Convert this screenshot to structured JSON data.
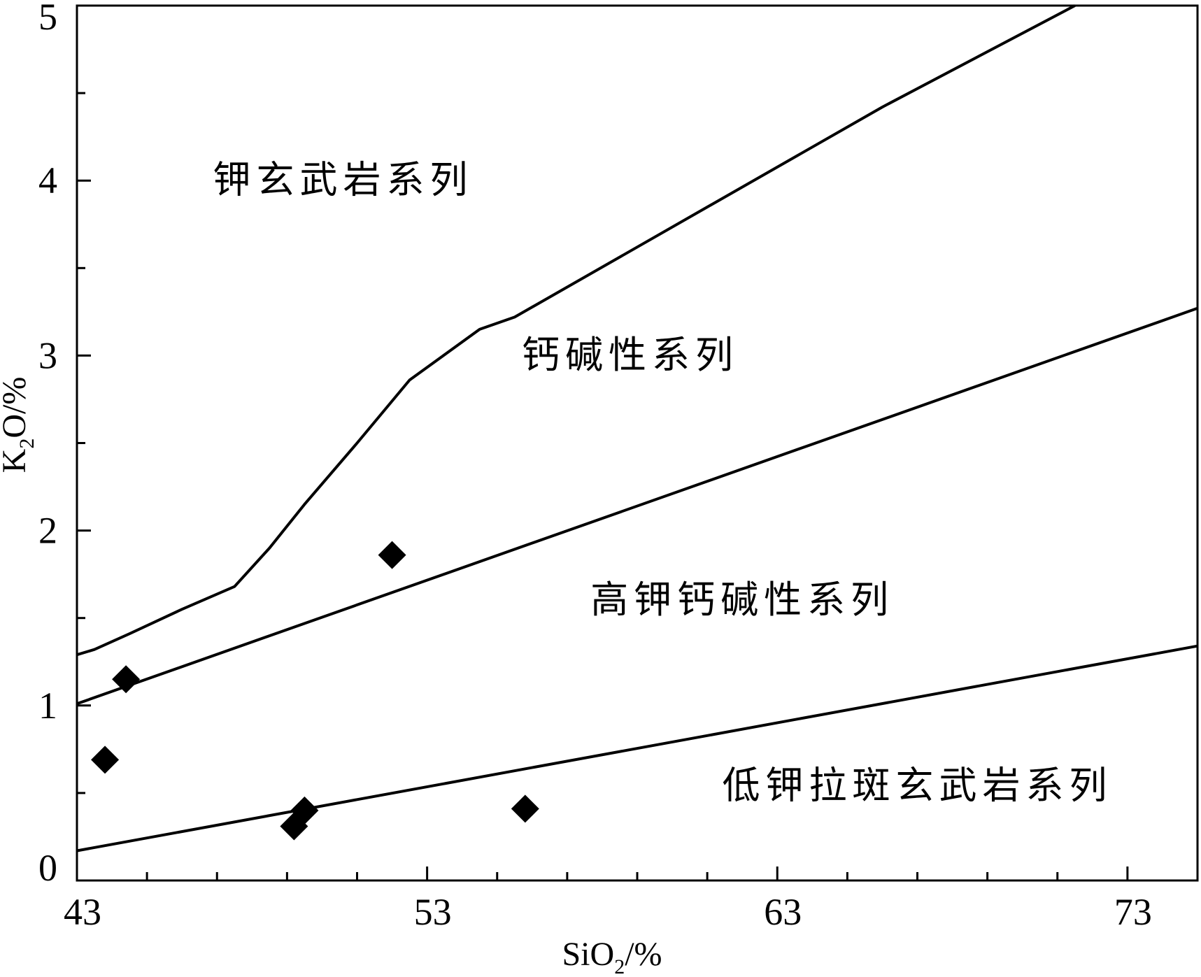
{
  "chart_data": {
    "type": "scatter",
    "xlabel": {
      "main": "SiO",
      "sub": "2",
      "unit": "/%"
    },
    "ylabel": {
      "main": "K",
      "sub": "2",
      "unit": "O/%"
    },
    "xlim": [
      43,
      75
    ],
    "ylim": [
      0,
      5
    ],
    "x_major_ticks": [
      43,
      53,
      63,
      73
    ],
    "x_tick_labels": [
      "43",
      "53",
      "63",
      "73"
    ],
    "x_minor_step": 2,
    "y_major_ticks": [
      0,
      1,
      2,
      3,
      4,
      5
    ],
    "y_tick_labels": [
      "0",
      "1",
      "2",
      "3",
      "4",
      "5"
    ],
    "y_minor_step": 0.5,
    "grid": false,
    "marker": "diamond",
    "marker_color": "#000000",
    "line_color": "#000000",
    "points": [
      {
        "x": 44.4,
        "y": 1.15
      },
      {
        "x": 43.8,
        "y": 0.69
      },
      {
        "x": 52.0,
        "y": 1.86
      },
      {
        "x": 49.2,
        "y": 0.31
      },
      {
        "x": 49.5,
        "y": 0.4
      },
      {
        "x": 55.8,
        "y": 0.41
      }
    ],
    "boundary_lines": [
      {
        "points": [
          [
            43.0,
            1.29
          ],
          [
            43.5,
            1.32
          ],
          [
            44.5,
            1.41
          ],
          [
            46.0,
            1.55
          ],
          [
            47.5,
            1.68
          ],
          [
            48.5,
            1.9
          ],
          [
            49.5,
            2.15
          ],
          [
            51.0,
            2.5
          ],
          [
            52.5,
            2.86
          ],
          [
            54.5,
            3.15
          ],
          [
            55.5,
            3.22
          ],
          [
            66.0,
            4.42
          ],
          [
            71.5,
            5.0
          ]
        ]
      },
      {
        "points": [
          [
            43.0,
            1.01
          ],
          [
            75.0,
            3.27
          ]
        ]
      },
      {
        "points": [
          [
            43.0,
            0.17
          ],
          [
            75.0,
            1.34
          ]
        ]
      }
    ],
    "region_labels": [
      {
        "text": "钾玄武岩系列",
        "x": 50.6,
        "y": 3.93
      },
      {
        "text": "钙碱性系列",
        "x": 58.8,
        "y": 2.93
      },
      {
        "text": "高钾钙碱性系列",
        "x": 62.0,
        "y": 1.53
      },
      {
        "text": "低钾拉斑玄武岩系列",
        "x": 67.0,
        "y": 0.47
      }
    ]
  }
}
